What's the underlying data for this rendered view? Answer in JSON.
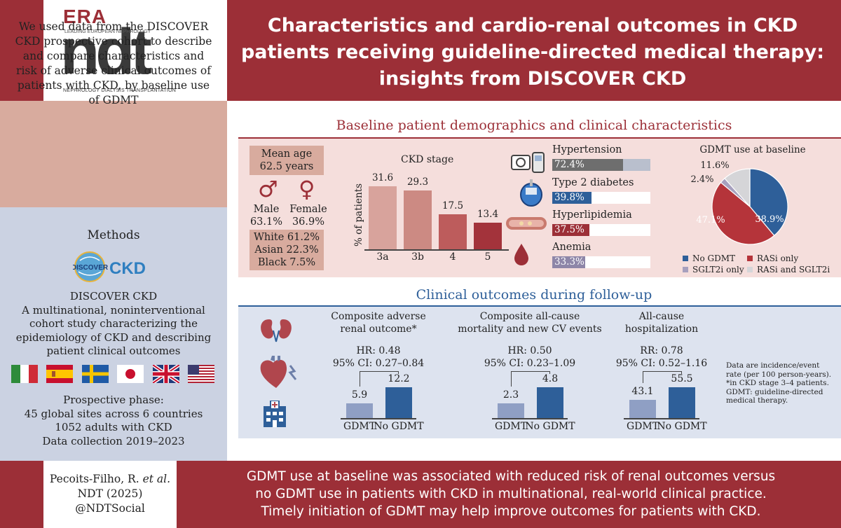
{
  "header": {
    "logo_era": "ERA",
    "logo_era_sub": "LEADING EUROPEAN NEPHROLOGY",
    "logo_ndt": "ndt",
    "logo_ndt_sub": "NEPHROLOGY DIALYSIS TRANSPLANTATION",
    "title_lines": [
      "Characteristics and cardio-renal outcomes in CKD",
      "patients receiving guideline-directed medical therapy:",
      "insights from DISCOVER CKD"
    ]
  },
  "left": {
    "intro_lines": [
      "We used data from the DISCOVER",
      "CKD prospective cohort to describe",
      "and compare characteristics and",
      "risk of adverse clinical outcomes of",
      "patients with CKD, by baseline use",
      "of GDMT"
    ],
    "methods_heading": "Methods",
    "discover_logo_word": "DISCOVER",
    "discover_logo_ckd": "CKD",
    "study_lines": [
      "DISCOVER CKD",
      "A multinational, noninterventional",
      "cohort study characterizing the",
      "epidemiology of CKD and describing",
      "patient clinical outcomes"
    ],
    "flags": [
      "italy-flag",
      "spain-flag",
      "sweden-flag",
      "japan-flag",
      "uk-flag",
      "usa-flag"
    ],
    "prospective_lines": [
      "Prospective phase:",
      "45 global sites across 6 countries",
      "1052 adults with CKD",
      "Data collection 2019–2023"
    ]
  },
  "baseline": {
    "title": "Baseline patient demographics and clinical characteristics",
    "mean_age_lines": [
      "Mean age",
      "62.5 years"
    ],
    "male_symbol": "♂",
    "female_symbol": "♀",
    "male_lines": [
      "Male",
      "63.1%"
    ],
    "female_lines": [
      "Female",
      "36.9%"
    ],
    "race_lines": [
      "White 61.2%",
      "Asian 22.3%",
      "Black 7.5%"
    ],
    "ckd_chart": {
      "title": "CKD stage",
      "ylabel": "% of patients",
      "bars": [
        {
          "label": "3a",
          "value": 31.6,
          "value_text": "31.6",
          "color": "#d8a39c"
        },
        {
          "label": "3b",
          "value": 29.3,
          "value_text": "29.3",
          "color": "#cc8a83"
        },
        {
          "label": "4",
          "value": 17.5,
          "value_text": "17.5",
          "color": "#bd5c5c"
        },
        {
          "label": "5",
          "value": 13.4,
          "value_text": "13.4",
          "color": "#a3333b"
        }
      ]
    },
    "conditions": [
      {
        "name": "Hypertension",
        "value": 72.4,
        "value_text": "72.4%",
        "fill": "#6e6e6e",
        "rest": "#b9bfcd",
        "icon": "blood-pressure-icon"
      },
      {
        "name": "Type 2 diabetes",
        "value": 39.8,
        "value_text": "39.8%",
        "fill": "#2e5f99",
        "rest": "#ffffff",
        "icon": "glucose-meter-icon"
      },
      {
        "name": "Hyperlipidemia",
        "value": 37.5,
        "value_text": "37.5%",
        "fill": "#9c2f37",
        "rest": "#ffffff",
        "icon": "artery-icon"
      },
      {
        "name": "Anemia",
        "value": 33.3,
        "value_text": "33.3%",
        "fill": "#8e86a8",
        "rest": "#ffffff",
        "icon": "blood-drop-icon"
      }
    ],
    "pie": {
      "title": "GDMT use at baseline",
      "slices": [
        {
          "name": "No GDMT",
          "value": 38.9,
          "label": "38.9%",
          "color": "#2e5f99"
        },
        {
          "name": "RASi only",
          "value": 47.1,
          "label": "47.1%",
          "color": "#b5343a"
        },
        {
          "name": "SGLT2i only",
          "value": 2.4,
          "label": "2.4%",
          "color": "#a7a0be"
        },
        {
          "name": "RASi and SGLT2i",
          "value": 11.6,
          "label": "11.6%",
          "color": "#d5d5d8"
        }
      ]
    }
  },
  "outcomes": {
    "title": "Clinical outcomes during follow-up",
    "icons": [
      "kidneys-icon",
      "heart-icon",
      "hospital-icon"
    ],
    "panels": [
      {
        "title_lines": [
          "Composite adverse",
          "renal outcome*"
        ],
        "stat_lines": [
          "HR: 0.48",
          "95% CI: 0.27–0.84"
        ],
        "gdmt": 5.9,
        "gdmt_text": "5.9",
        "no_gdmt": 12.2,
        "no_gdmt_text": "12.2",
        "cat_gdmt": "GDMT",
        "cat_no_gdmt": "No GDMT"
      },
      {
        "title_lines": [
          "Composite all-cause",
          "mortality and new CV events"
        ],
        "stat_lines": [
          "HR: 0.50",
          "95% CI: 0.23–1.09"
        ],
        "gdmt": 2.3,
        "gdmt_text": "2.3",
        "no_gdmt": 4.8,
        "no_gdmt_text": "4.8",
        "cat_gdmt": "GDMT",
        "cat_no_gdmt": "No GDMT"
      },
      {
        "title_lines": [
          "All-cause",
          "hospitalization"
        ],
        "stat_lines": [
          "RR: 0.78",
          "95% CI: 0.52–1.16"
        ],
        "gdmt": 43.1,
        "gdmt_text": "43.1",
        "no_gdmt": 55.5,
        "no_gdmt_text": "55.5",
        "cat_gdmt": "GDMT",
        "cat_no_gdmt": "No GDMT"
      }
    ],
    "note_lines": [
      "Data are incidence/event",
      "rate (per 100 person-years).",
      "*in CKD stage 3–4 patients.",
      "GDMT: guideline-directed",
      "medical therapy."
    ],
    "colors": {
      "gdmt": "#8f9fc4",
      "no_gdmt": "#2e5f99"
    }
  },
  "footer": {
    "cite_author": "Pecoits-Filho, R.",
    "cite_etal": "et al.",
    "cite_lines": [
      "NDT (2025)",
      "@NDTSocial"
    ],
    "conclusion_lines": [
      "GDMT use at baseline was associated with reduced risk of renal outcomes versus",
      "no GDMT use in patients with CKD in multinational, real-world clinical practice.",
      "Timely initiation of GDMT may help improve outcomes for patients with CKD."
    ]
  }
}
